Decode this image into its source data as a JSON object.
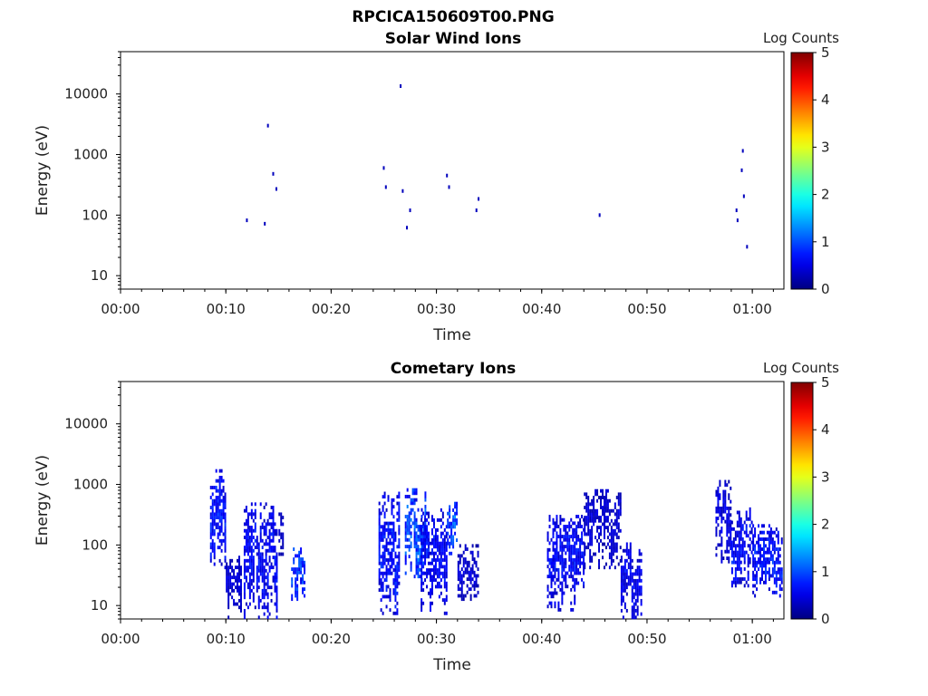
{
  "figure_title": "RPCICA150609T00.PNG",
  "colorbar_label": "Log Counts",
  "colorbar_ticks": [
    "0",
    "1",
    "2",
    "3",
    "4",
    "5"
  ],
  "colorbar_range": [
    0,
    5
  ],
  "colormap": "jet",
  "chart_data": [
    {
      "type": "heatmap",
      "title": "Solar Wind Ions",
      "xlabel": "Time",
      "ylabel": "Energy (eV)",
      "y_scale": "log",
      "xlim": [
        "00:00",
        "01:03"
      ],
      "ylim": [
        6,
        50000
      ],
      "x_ticks": [
        "00:00",
        "00:10",
        "00:20",
        "00:30",
        "00:40",
        "00:50",
        "01:00"
      ],
      "y_ticks": [
        "10",
        "100",
        "1000",
        "10000"
      ],
      "points": [
        {
          "t": "00:12",
          "e": 82,
          "c": 0.3
        },
        {
          "t": "00:13.7",
          "e": 72,
          "c": 0.3
        },
        {
          "t": "00:14",
          "e": 3000,
          "c": 0.3
        },
        {
          "t": "00:14.5",
          "e": 480,
          "c": 0.3
        },
        {
          "t": "00:14.8",
          "e": 270,
          "c": 0.3
        },
        {
          "t": "00:25",
          "e": 600,
          "c": 0.3
        },
        {
          "t": "00:25.2",
          "e": 290,
          "c": 0.3
        },
        {
          "t": "00:26.6",
          "e": 13500,
          "c": 0.3
        },
        {
          "t": "00:26.8",
          "e": 250,
          "c": 0.3
        },
        {
          "t": "00:27.2",
          "e": 62,
          "c": 0.3
        },
        {
          "t": "00:27.5",
          "e": 120,
          "c": 0.3
        },
        {
          "t": "00:31",
          "e": 450,
          "c": 0.3
        },
        {
          "t": "00:31.2",
          "e": 290,
          "c": 0.3
        },
        {
          "t": "00:33.8",
          "e": 120,
          "c": 0.3
        },
        {
          "t": "00:34",
          "e": 185,
          "c": 0.3
        },
        {
          "t": "00:45.5",
          "e": 100,
          "c": 0.3
        },
        {
          "t": "00:58.5",
          "e": 120,
          "c": 0.3
        },
        {
          "t": "00:58.6",
          "e": 82,
          "c": 0.3
        },
        {
          "t": "00:59",
          "e": 550,
          "c": 0.3
        },
        {
          "t": "00:59.1",
          "e": 1150,
          "c": 0.3
        },
        {
          "t": "00:59.2",
          "e": 205,
          "c": 0.3
        },
        {
          "t": "00:59.5",
          "e": 30,
          "c": 0.3
        }
      ]
    },
    {
      "type": "heatmap",
      "title": "Cometary Ions",
      "xlabel": "Time",
      "ylabel": "Energy (eV)",
      "y_scale": "log",
      "xlim": [
        "00:00",
        "01:03"
      ],
      "ylim": [
        6,
        50000
      ],
      "x_ticks": [
        "00:00",
        "00:10",
        "00:20",
        "00:30",
        "00:40",
        "00:50",
        "01:00"
      ],
      "y_ticks": [
        "10",
        "100",
        "1000",
        "10000"
      ],
      "bursts": [
        {
          "t_start": "00:08.5",
          "t_end": "00:10.0",
          "e_low": 40,
          "e_high": 1700,
          "peak": 1.0
        },
        {
          "t_start": "00:10.0",
          "t_end": "00:11.5",
          "e_low": 6,
          "e_high": 60,
          "peak": 0.6
        },
        {
          "t_start": "00:11.7",
          "t_end": "00:14.8",
          "e_low": 6,
          "e_high": 450,
          "peak": 0.9
        },
        {
          "t_start": "00:15.0",
          "t_end": "00:15.5",
          "e_low": 40,
          "e_high": 400,
          "peak": 0.5
        },
        {
          "t_start": "00:16.2",
          "t_end": "00:17.5",
          "e_low": 12,
          "e_high": 90,
          "peak": 1.3
        },
        {
          "t_start": "00:24.5",
          "t_end": "00:26.5",
          "e_low": 7,
          "e_high": 700,
          "peak": 1.0
        },
        {
          "t_start": "00:27.0",
          "t_end": "00:29.0",
          "e_low": 25,
          "e_high": 800,
          "peak": 1.4
        },
        {
          "t_start": "00:28.5",
          "t_end": "00:31.0",
          "e_low": 7,
          "e_high": 400,
          "peak": 0.9
        },
        {
          "t_start": "00:31.0",
          "t_end": "00:32.0",
          "e_low": 60,
          "e_high": 500,
          "peak": 1.5
        },
        {
          "t_start": "00:32.0",
          "t_end": "00:34.0",
          "e_low": 12,
          "e_high": 100,
          "peak": 0.6
        },
        {
          "t_start": "00:40.5",
          "t_end": "00:44.0",
          "e_low": 8,
          "e_high": 300,
          "peak": 0.9
        },
        {
          "t_start": "00:44.0",
          "t_end": "00:47.5",
          "e_low": 40,
          "e_high": 800,
          "peak": 0.6
        },
        {
          "t_start": "00:47.5",
          "t_end": "00:49.5",
          "e_low": 6,
          "e_high": 100,
          "peak": 0.8
        },
        {
          "t_start": "00:56.5",
          "t_end": "00:58.0",
          "e_low": 50,
          "e_high": 1100,
          "peak": 0.7
        },
        {
          "t_start": "00:58.0",
          "t_end": "01:00.0",
          "e_low": 20,
          "e_high": 400,
          "peak": 0.9
        },
        {
          "t_start": "01:00.0",
          "t_end": "01:02.8",
          "e_low": 12,
          "e_high": 200,
          "peak": 1.0
        }
      ]
    }
  ]
}
